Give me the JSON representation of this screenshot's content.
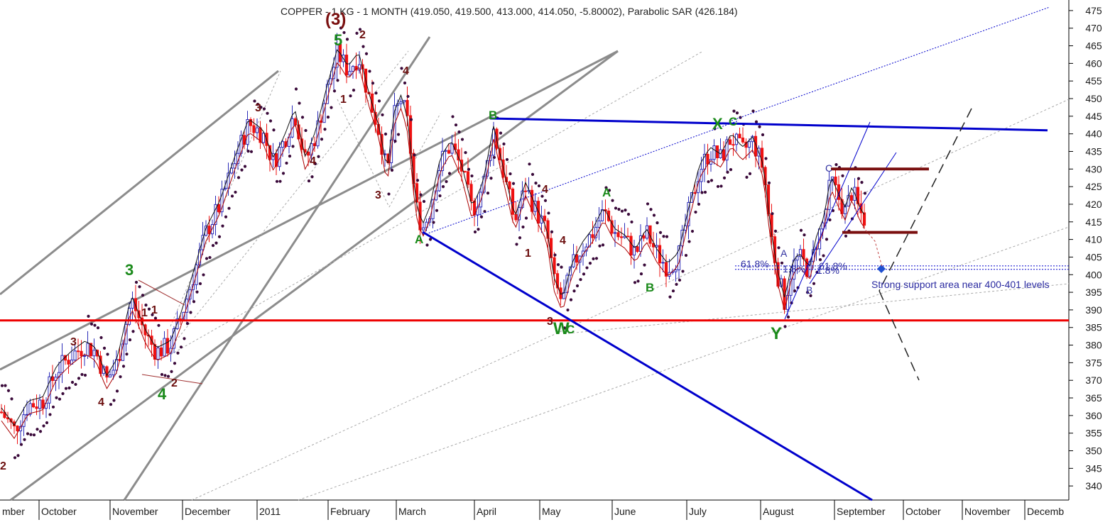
{
  "chart_data": {
    "type": "candlestick",
    "title": "COPPER - 1 KG - 1 MONTH (419.050, 419.500, 413.000, 414.050, -5.80002), Parabolic SAR (426.184)",
    "ylim": [
      336,
      478
    ],
    "y_ticks": [
      340,
      345,
      350,
      355,
      360,
      365,
      370,
      375,
      380,
      385,
      390,
      395,
      400,
      405,
      410,
      415,
      420,
      425,
      430,
      435,
      440,
      445,
      450,
      455,
      460,
      465,
      470,
      475
    ],
    "x_labels": [
      "mber",
      "October",
      "November",
      "December",
      "2011",
      "February",
      "March",
      "April",
      "May",
      "June",
      "July",
      "August",
      "September",
      "October",
      "November",
      "Decemb"
    ],
    "price_path": [
      [
        2,
        361
      ],
      [
        20,
        356
      ],
      [
        40,
        363
      ],
      [
        60,
        364
      ],
      [
        80,
        373
      ],
      [
        100,
        377
      ],
      [
        120,
        380
      ],
      [
        135,
        378
      ],
      [
        150,
        370
      ],
      [
        165,
        375
      ],
      [
        185,
        393
      ],
      [
        205,
        383
      ],
      [
        220,
        378
      ],
      [
        240,
        380
      ],
      [
        255,
        388
      ],
      [
        270,
        398
      ],
      [
        290,
        412
      ],
      [
        310,
        420
      ],
      [
        330,
        432
      ],
      [
        350,
        443
      ],
      [
        370,
        440
      ],
      [
        385,
        432
      ],
      [
        400,
        438
      ],
      [
        415,
        446
      ],
      [
        430,
        432
      ],
      [
        445,
        440
      ],
      [
        460,
        452
      ],
      [
        475,
        463
      ],
      [
        490,
        458
      ],
      [
        505,
        462
      ],
      [
        520,
        450
      ],
      [
        535,
        440
      ],
      [
        545,
        428
      ],
      [
        555,
        445
      ],
      [
        565,
        450
      ],
      [
        575,
        442
      ],
      [
        585,
        420
      ],
      [
        595,
        413
      ],
      [
        605,
        418
      ],
      [
        620,
        432
      ],
      [
        635,
        437
      ],
      [
        650,
        430
      ],
      [
        665,
        418
      ],
      [
        680,
        425
      ],
      [
        695,
        441
      ],
      [
        710,
        428
      ],
      [
        725,
        415
      ],
      [
        740,
        425
      ],
      [
        755,
        418
      ],
      [
        770,
        412
      ],
      [
        780,
        398
      ],
      [
        792,
        392
      ],
      [
        805,
        402
      ],
      [
        820,
        408
      ],
      [
        835,
        412
      ],
      [
        850,
        418
      ],
      [
        865,
        412
      ],
      [
        880,
        410
      ],
      [
        895,
        406
      ],
      [
        910,
        412
      ],
      [
        925,
        406
      ],
      [
        940,
        402
      ],
      [
        955,
        405
      ],
      [
        970,
        418
      ],
      [
        985,
        430
      ],
      [
        1000,
        435
      ],
      [
        1015,
        433
      ],
      [
        1030,
        439
      ],
      [
        1045,
        435
      ],
      [
        1060,
        438
      ],
      [
        1075,
        430
      ],
      [
        1085,
        412
      ],
      [
        1095,
        400
      ],
      [
        1105,
        392
      ],
      [
        1115,
        402
      ],
      [
        1125,
        405
      ],
      [
        1140,
        401
      ],
      [
        1150,
        410
      ],
      [
        1160,
        415
      ],
      [
        1170,
        427
      ],
      [
        1180,
        422
      ],
      [
        1190,
        418
      ],
      [
        1200,
        424
      ],
      [
        1210,
        418
      ],
      [
        1220,
        415
      ]
    ],
    "support_level": 387,
    "resistance_line_end": 441,
    "box_top": 430,
    "box_bottom": 412,
    "fib_levels": [
      402.5,
      401.5
    ],
    "wave_labels_green": [
      "(3)",
      "5",
      "3",
      "4",
      "A",
      "B",
      "W",
      "C",
      "A",
      "B",
      "X",
      "C",
      "Y"
    ],
    "wave_labels_brown": [
      "2",
      "4",
      "3",
      "1",
      "4",
      "3",
      "4",
      "3",
      "1",
      "2",
      "4",
      "1",
      "2",
      "1",
      "4",
      "3"
    ],
    "small_labels": [
      "A",
      "B",
      "C"
    ],
    "fib_text_left": "61.8%",
    "fib_text_mid": "1.8%",
    "fib_text_right": "1.8%",
    "fib_text_mid2": "61.8%",
    "note": "Strong support area near 400-401 levels",
    "colors": {
      "support": "#ee0000",
      "trendline_blue": "#0000cc",
      "box": "#7a0f0f",
      "sar": "#3a0a3a",
      "bull_candle": "#2b2bb8",
      "bear_candle": "#ee1111",
      "channel_grey": "#8c8c8c",
      "wave_green": "#1a8a1a",
      "wave_brown": "#6b0d0d"
    }
  }
}
